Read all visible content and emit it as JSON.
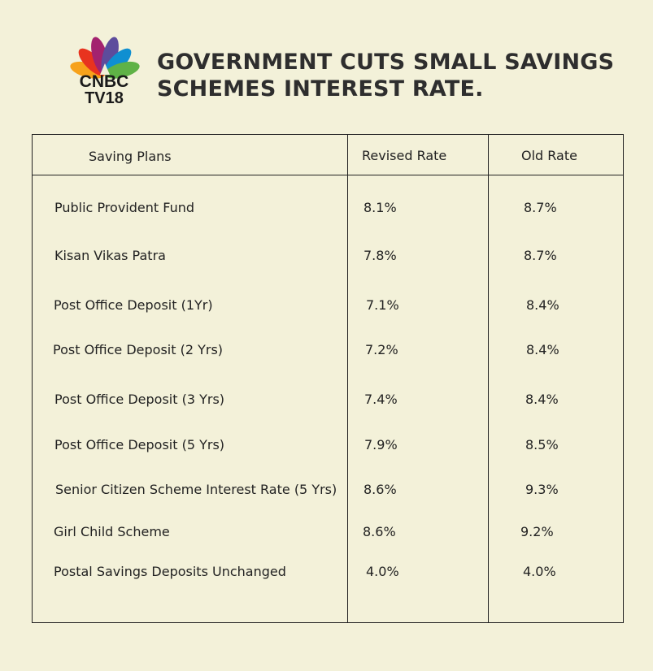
{
  "logo": {
    "line1": "CNBC",
    "line2": "TV18"
  },
  "headline": {
    "line1": "GOVERNMENT CUTS SMALL SAVINGS",
    "line2": "SCHEMES INTEREST RATE."
  },
  "table": {
    "headers": [
      "Saving Plans",
      "Revised Rate",
      "Old Rate"
    ],
    "rows": [
      [
        "Public Provident Fund",
        "8.1%",
        "8.7%"
      ],
      [
        "Kisan Vikas Patra",
        "7.8%",
        "8.7%"
      ],
      [
        "Post Office Deposit (1Yr)",
        "7.1%",
        "8.4%"
      ],
      [
        "Post Office Deposit (2 Yrs)",
        "7.2%",
        "8.4%"
      ],
      [
        "Post Office Deposit (3 Yrs)",
        "7.4%",
        "8.4%"
      ],
      [
        "Post Office Deposit (5 Yrs)",
        "7.9%",
        "8.5%"
      ],
      [
        "Senior Citizen Scheme Interest Rate (5 Yrs)",
        "8.6%",
        "9.3%"
      ],
      [
        "Girl Child Scheme",
        "8.6%",
        "9.2%"
      ],
      [
        "Postal Savings Deposits Unchanged",
        "4.0%",
        "4.0%"
      ]
    ]
  }
}
